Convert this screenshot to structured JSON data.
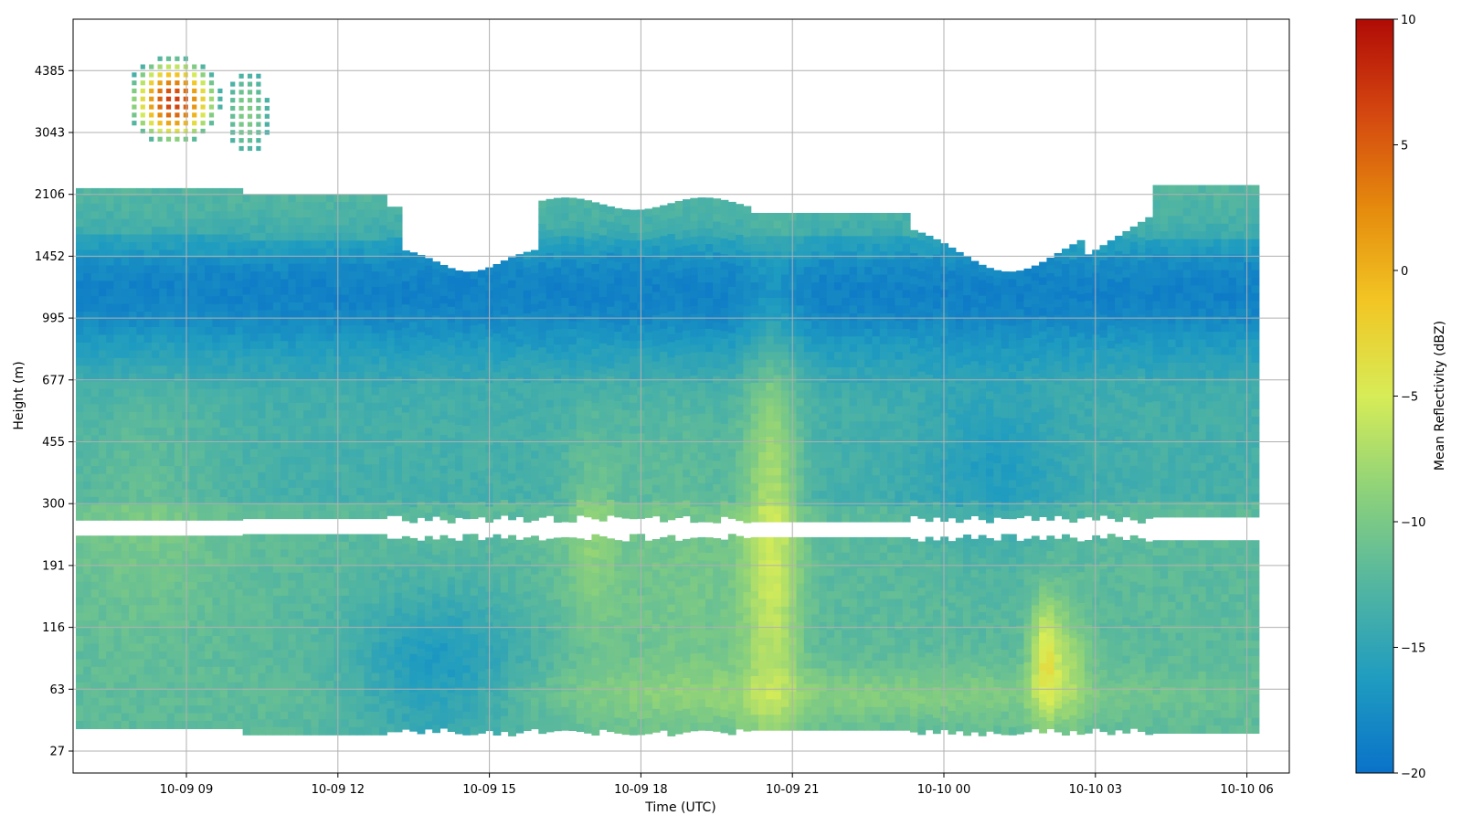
{
  "chart_data": {
    "type": "heatmap",
    "title": "",
    "xlabel": "Time (UTC)",
    "ylabel": "Height (m)",
    "x_ticks": [
      "10-09 09",
      "10-09 12",
      "10-09 15",
      "10-09 18",
      "10-09 21",
      "10-10 00",
      "10-10 03",
      "10-10 06"
    ],
    "y_ticks": [
      "27",
      "63",
      "116",
      "191",
      "300",
      "455",
      "677",
      "995",
      "1452",
      "2106",
      "3043",
      "4385"
    ],
    "grid": true,
    "colorbar": {
      "label": "Mean Reflectivity (dBZ)",
      "range": [
        -20,
        10
      ],
      "ticks": [
        "10",
        "5",
        "0",
        "−5",
        "−10",
        "−15",
        "−20"
      ],
      "colors": [
        "#0a72c9",
        "#1f9cc0",
        "#54b6a0",
        "#8ed27a",
        "#d7ec57",
        "#f2c624",
        "#e58a0d",
        "#d44710",
        "#b00b06"
      ]
    }
  }
}
